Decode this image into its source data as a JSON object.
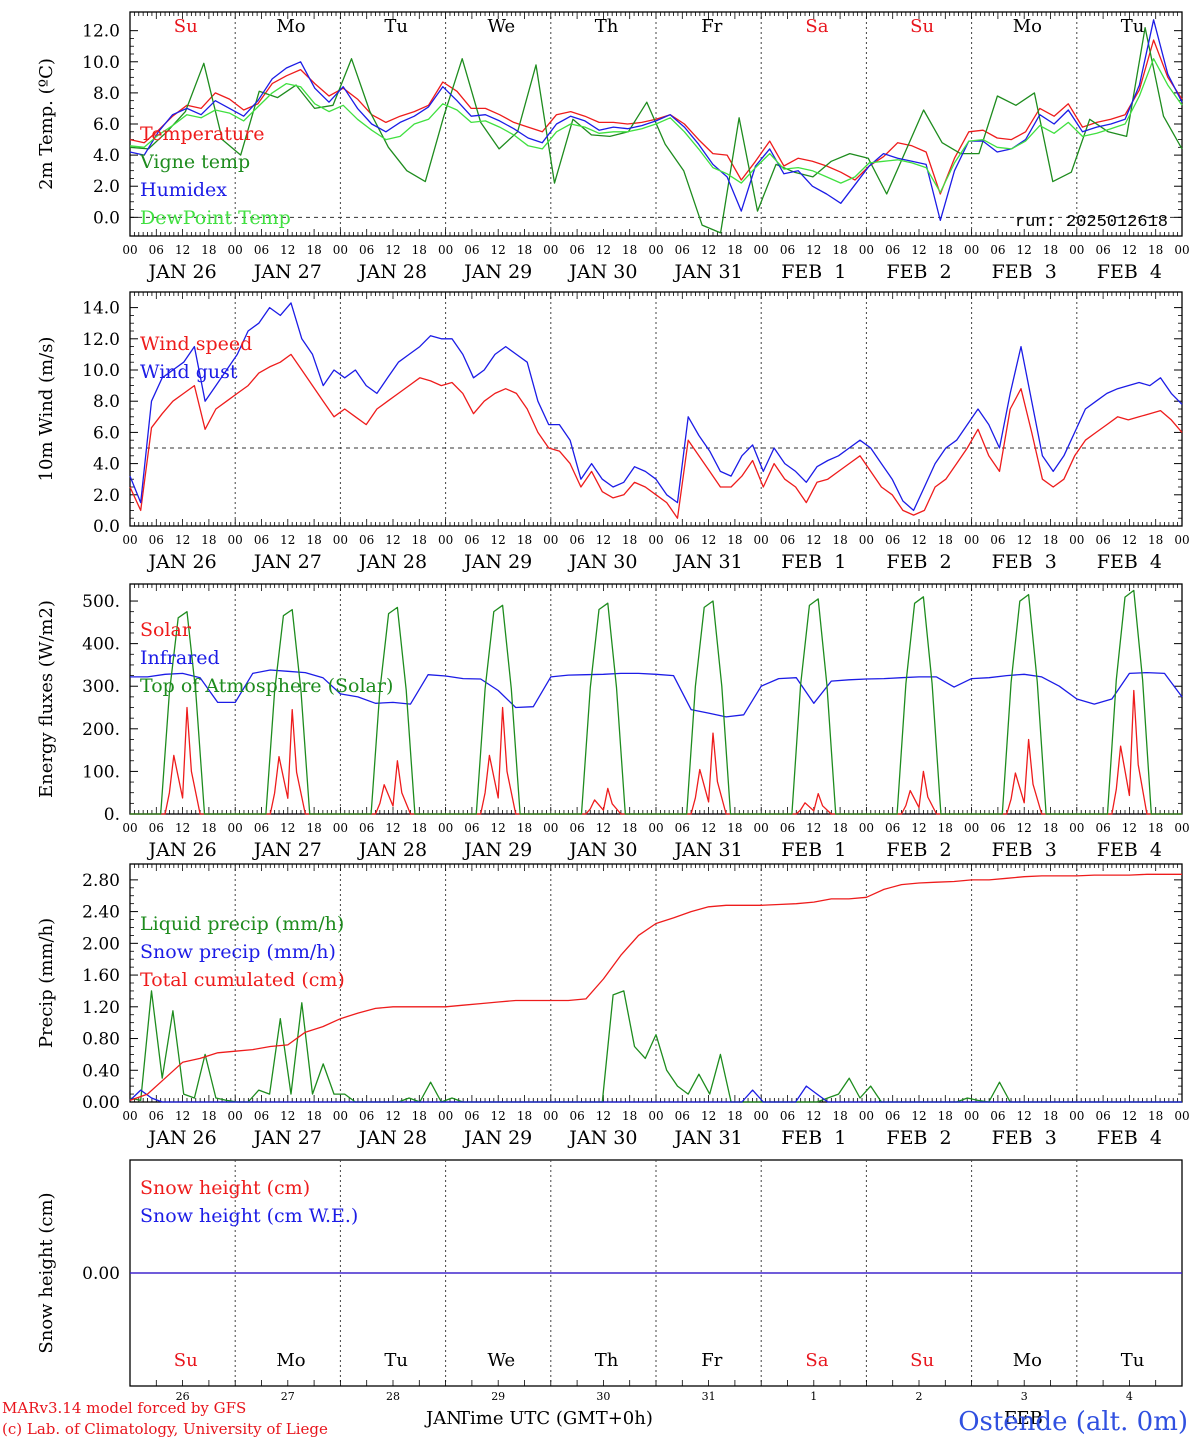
{
  "page": {
    "footer_model": "MARv3.14 model forced by GFS",
    "footer_lab": "(c) Lab. of Climatology, University of Liege",
    "station": "Ostende (alt. 0m)",
    "xlabel": "Time UTC (GMT+0h)",
    "month_start": "JAN",
    "month_end": "FEB"
  },
  "time_axis": {
    "hour_ticks": [
      "00",
      "06",
      "12",
      "18"
    ],
    "date_labels": [
      "JAN 26",
      "JAN 27",
      "JAN 28",
      "JAN 29",
      "JAN 30",
      "JAN 31",
      "FEB  1",
      "FEB  2",
      "FEB  3",
      "FEB  4"
    ],
    "weekdays": [
      "Su",
      "Mo",
      "Tu",
      "We",
      "Th",
      "Fr",
      "Sa",
      "Su",
      "Mo",
      "Tu"
    ],
    "weekday_colors": [
      "#e8141c",
      "#000000",
      "#000000",
      "#000000",
      "#000000",
      "#000000",
      "#e8141c",
      "#e8141c",
      "#000000",
      "#000000"
    ],
    "day_numbers": [
      "26",
      "27",
      "28",
      "29",
      "30",
      "31",
      "1",
      "2",
      "3",
      "4"
    ],
    "days": 10
  },
  "colors": {
    "red": "#ee1c1c",
    "green": "#1e8c1e",
    "blue": "#1c1ce6",
    "lightgreen": "#40e040",
    "station_blue": "#3050e0"
  },
  "chart_data": [
    {
      "id": "temp",
      "type": "line",
      "ylabel": "2m Temp. (ºC)",
      "ylim": [
        -1.2,
        13.2
      ],
      "yticks": [
        0,
        2,
        4,
        6,
        8,
        10,
        12
      ],
      "ytick_format": "1",
      "ref_line": 0,
      "annotation": "run: 2025012618",
      "series": [
        {
          "name": "Temperature",
          "color": "#ee1c1c",
          "values": [
            5.0,
            4.8,
            5.6,
            6.5,
            7.2,
            7.0,
            8.0,
            7.6,
            6.9,
            7.3,
            8.6,
            9.1,
            9.5,
            8.6,
            7.8,
            8.3,
            7.6,
            6.6,
            6.1,
            6.5,
            6.8,
            7.2,
            8.7,
            8.1,
            7.0,
            7.0,
            6.6,
            6.1,
            5.8,
            5.5,
            6.6,
            6.8,
            6.5,
            6.1,
            6.1,
            6.0,
            6.1,
            6.3,
            6.6,
            6.0,
            5.0,
            4.1,
            4.0,
            2.4,
            3.6,
            4.9,
            3.3,
            3.8,
            3.6,
            3.3,
            2.9,
            2.4,
            3.3,
            3.9,
            4.8,
            4.6,
            4.2,
            1.5,
            3.8,
            5.5,
            5.6,
            5.1,
            5.0,
            5.5,
            7.0,
            6.5,
            7.3,
            5.8,
            6.1,
            6.3,
            6.6,
            8.2,
            11.4,
            9.0,
            7.6
          ]
        },
        {
          "name": "Vigne temp",
          "color": "#1e8c1e",
          "values": [
            4.5,
            4.4,
            5.5,
            6.8,
            9.9,
            5.0,
            4.0,
            8.1,
            7.7,
            8.5,
            7.0,
            7.2,
            10.2,
            6.8,
            4.5,
            3.0,
            2.3,
            6.5,
            10.2,
            6.1,
            4.4,
            5.5,
            9.8,
            2.2,
            6.3,
            5.3,
            5.2,
            5.5,
            7.4,
            4.7,
            3.0,
            -0.5,
            -1.0,
            6.4,
            0.4,
            3.4,
            2.9,
            2.6,
            3.6,
            4.1,
            3.8,
            1.5,
            4.2,
            6.9,
            4.8,
            4.1,
            4.1,
            7.8,
            7.2,
            8.0,
            2.3,
            2.9,
            6.3,
            5.5,
            5.2,
            12.2,
            6.5,
            4.4
          ]
        },
        {
          "name": "Humidex",
          "color": "#1c1ce6",
          "values": [
            4.2,
            4.0,
            5.5,
            6.6,
            7.0,
            6.6,
            7.5,
            7.0,
            6.5,
            7.5,
            8.9,
            9.6,
            10.0,
            8.3,
            7.4,
            8.4,
            7.0,
            6.0,
            5.5,
            6.1,
            6.5,
            7.1,
            8.4,
            7.5,
            6.5,
            6.6,
            6.2,
            5.7,
            5.1,
            4.8,
            6.0,
            6.5,
            6.2,
            5.6,
            5.8,
            5.7,
            5.9,
            6.2,
            6.6,
            5.8,
            4.7,
            3.4,
            2.6,
            0.4,
            3.3,
            4.4,
            2.8,
            3.0,
            2.0,
            1.5,
            0.9,
            2.1,
            3.3,
            4.1,
            3.8,
            3.6,
            3.4,
            -0.2,
            3.0,
            4.9,
            4.9,
            4.2,
            4.4,
            5.0,
            6.6,
            6.0,
            6.9,
            5.5,
            5.8,
            6.0,
            6.3,
            8.5,
            12.7,
            9.2,
            7.4
          ]
        },
        {
          "name": "DewPoint Temp",
          "color": "#40e040",
          "values": [
            4.6,
            4.5,
            5.3,
            5.9,
            6.6,
            6.4,
            6.9,
            6.7,
            6.2,
            7.1,
            8.0,
            8.6,
            8.4,
            7.3,
            6.8,
            7.2,
            6.3,
            5.6,
            5.0,
            5.2,
            6.0,
            6.3,
            7.3,
            6.9,
            6.1,
            6.2,
            5.8,
            5.3,
            4.6,
            4.4,
            5.5,
            6.0,
            5.8,
            5.4,
            5.5,
            5.5,
            5.7,
            6.0,
            6.4,
            5.5,
            4.4,
            3.2,
            2.8,
            2.2,
            3.2,
            4.1,
            3.1,
            3.2,
            3.0,
            2.6,
            2.2,
            2.6,
            3.5,
            3.6,
            3.7,
            3.5,
            3.2,
            1.6,
            3.5,
            4.9,
            5.0,
            4.5,
            4.4,
            4.9,
            5.9,
            5.4,
            6.1,
            5.2,
            5.4,
            5.7,
            6.0,
            7.8,
            10.2,
            8.5,
            7.2
          ]
        }
      ]
    },
    {
      "id": "wind",
      "type": "line",
      "ylabel": "10m Wind (m/s)",
      "ylim": [
        0,
        15
      ],
      "yticks": [
        0,
        2,
        4,
        6,
        8,
        10,
        12,
        14
      ],
      "ytick_format": "1",
      "ref_line": 5,
      "series": [
        {
          "name": "Wind speed",
          "color": "#ee1c1c",
          "values": [
            2.5,
            1.0,
            6.3,
            7.2,
            8.0,
            8.5,
            9.0,
            6.2,
            7.5,
            8.0,
            8.5,
            9.0,
            9.8,
            10.2,
            10.5,
            11.0,
            10.0,
            9.0,
            8.0,
            7.0,
            7.5,
            7.0,
            6.5,
            7.5,
            8.0,
            8.5,
            9.0,
            9.5,
            9.3,
            9.0,
            9.2,
            8.5,
            7.2,
            8.0,
            8.5,
            8.8,
            8.5,
            7.5,
            6.0,
            5.0,
            4.8,
            4.0,
            2.5,
            3.5,
            2.2,
            1.8,
            2.0,
            2.8,
            2.5,
            2.0,
            1.5,
            0.5,
            5.5,
            4.5,
            3.5,
            2.5,
            2.5,
            3.2,
            4.2,
            2.5,
            4.0,
            3.0,
            2.5,
            1.5,
            2.8,
            3.0,
            3.5,
            4.0,
            4.5,
            3.5,
            2.5,
            2.0,
            1.0,
            0.7,
            1.0,
            2.5,
            3.0,
            4.0,
            5.0,
            6.2,
            4.5,
            3.5,
            7.5,
            8.8,
            6.0,
            3.0,
            2.5,
            3.0,
            4.5,
            5.5,
            6.0,
            6.5,
            7.0,
            6.8,
            7.0,
            7.2,
            7.4,
            6.8,
            6.0
          ]
        },
        {
          "name": "Wind gust",
          "color": "#1c1ce6",
          "values": [
            3.2,
            1.5,
            8.0,
            9.5,
            10.0,
            10.5,
            11.5,
            8.0,
            9.0,
            10.0,
            11.0,
            12.5,
            13.0,
            14.0,
            13.5,
            14.3,
            12.0,
            11.0,
            9.0,
            10.0,
            9.5,
            10.0,
            9.0,
            8.5,
            9.5,
            10.5,
            11.0,
            11.5,
            12.2,
            12.0,
            12.0,
            11.0,
            9.5,
            10.0,
            11.0,
            11.5,
            11.0,
            10.5,
            8.0,
            6.5,
            6.5,
            5.5,
            3.0,
            4.0,
            3.0,
            2.5,
            2.8,
            3.8,
            3.5,
            3.0,
            2.0,
            1.5,
            7.0,
            5.8,
            4.8,
            3.5,
            3.2,
            4.5,
            5.2,
            3.5,
            5.0,
            4.0,
            3.5,
            2.8,
            3.8,
            4.2,
            4.5,
            5.0,
            5.5,
            5.0,
            4.0,
            3.0,
            1.6,
            1.0,
            2.5,
            4.0,
            5.0,
            5.5,
            6.5,
            7.5,
            6.5,
            5.0,
            8.5,
            11.5,
            8.0,
            4.5,
            3.5,
            4.5,
            6.0,
            7.5,
            8.0,
            8.5,
            8.8,
            9.0,
            9.2,
            9.0,
            9.5,
            8.5,
            7.8
          ]
        }
      ]
    },
    {
      "id": "energy",
      "type": "line",
      "ylabel": "Energy fluxes (W/m2)",
      "ylim": [
        0,
        540
      ],
      "yticks": [
        0,
        100,
        200,
        300,
        400,
        500
      ],
      "ytick_format": "0",
      "series": [
        {
          "name": "Solar",
          "color": "#ee1c1c",
          "values_mode": "daily",
          "peaks": [
            250,
            245,
            125,
            250,
            60,
            190,
            48,
            100,
            175,
            290
          ]
        },
        {
          "name": "Infrared",
          "color": "#1c1ce6",
          "values": [
            322,
            322,
            328,
            330,
            320,
            262,
            262,
            330,
            338,
            335,
            332,
            320,
            282,
            275,
            260,
            262,
            258,
            327,
            324,
            318,
            317,
            290,
            250,
            252,
            322,
            326,
            327,
            328,
            330,
            330,
            328,
            325,
            245,
            237,
            228,
            233,
            300,
            318,
            320,
            260,
            312,
            315,
            317,
            318,
            320,
            322,
            322,
            298,
            318,
            320,
            325,
            328,
            322,
            300,
            270,
            258,
            270,
            330,
            332,
            330,
            275
          ]
        },
        {
          "name": "Top of Atmosphere (Solar)",
          "color": "#1e8c1e",
          "values_mode": "daily",
          "peaks": [
            475,
            480,
            485,
            490,
            495,
            500,
            505,
            510,
            515,
            525
          ]
        }
      ]
    },
    {
      "id": "precip",
      "type": "line",
      "ylabel": "Precip (mm/h)",
      "ylim": [
        0,
        3.0
      ],
      "yticks": [
        0,
        0.4,
        0.8,
        1.2,
        1.6,
        2.0,
        2.4,
        2.8
      ],
      "ytick_format": "2",
      "series": [
        {
          "name": "Liquid precip (mm/h)",
          "color": "#1e8c1e",
          "values": [
            0.05,
            0.02,
            1.4,
            0.3,
            1.15,
            0.1,
            0.05,
            0.6,
            0.05,
            0.02,
            0,
            0,
            0.15,
            0.1,
            1.05,
            0.1,
            1.25,
            0.1,
            0.48,
            0.1,
            0.1,
            0,
            0,
            0,
            0,
            0,
            0.05,
            0,
            0.25,
            0,
            0.05,
            0,
            0,
            0,
            0,
            0,
            0,
            0,
            0,
            0,
            0,
            0,
            0,
            0,
            0,
            1.35,
            1.4,
            0.7,
            0.55,
            0.85,
            0.4,
            0.2,
            0.1,
            0.35,
            0.1,
            0.6,
            0,
            0,
            0,
            0,
            0,
            0,
            0,
            0,
            0,
            0.05,
            0.1,
            0.3,
            0.05,
            0.2,
            0,
            0,
            0,
            0,
            0,
            0,
            0,
            0,
            0.05,
            0.02,
            0,
            0.25,
            0,
            0,
            0,
            0,
            0,
            0,
            0,
            0,
            0,
            0,
            0,
            0,
            0,
            0,
            0,
            0,
            0
          ]
        },
        {
          "name": "Snow precip (mm/h)",
          "color": "#1c1ce6",
          "values": [
            0.02,
            0.15,
            0.05,
            0,
            0,
            0,
            0,
            0,
            0,
            0,
            0,
            0,
            0,
            0,
            0,
            0,
            0,
            0,
            0,
            0,
            0,
            0,
            0,
            0,
            0,
            0,
            0,
            0,
            0,
            0,
            0,
            0,
            0,
            0,
            0,
            0,
            0,
            0,
            0,
            0,
            0,
            0,
            0,
            0,
            0,
            0,
            0,
            0,
            0,
            0,
            0,
            0,
            0,
            0,
            0,
            0,
            0,
            0,
            0.15,
            0,
            0,
            0,
            0,
            0.2,
            0.1,
            0,
            0,
            0,
            0,
            0,
            0,
            0,
            0,
            0,
            0,
            0,
            0,
            0,
            0,
            0,
            0,
            0,
            0,
            0,
            0,
            0,
            0,
            0,
            0,
            0,
            0,
            0,
            0,
            0,
            0,
            0,
            0,
            0,
            0
          ]
        },
        {
          "name": "Total cumulated (cm)",
          "color": "#ee1c1c",
          "values": [
            0.02,
            0.1,
            0.3,
            0.5,
            0.55,
            0.62,
            0.64,
            0.66,
            0.7,
            0.72,
            0.88,
            0.95,
            1.05,
            1.12,
            1.18,
            1.2,
            1.2,
            1.2,
            1.2,
            1.22,
            1.24,
            1.26,
            1.28,
            1.28,
            1.28,
            1.28,
            1.3,
            1.55,
            1.85,
            2.1,
            2.25,
            2.32,
            2.4,
            2.46,
            2.48,
            2.48,
            2.48,
            2.49,
            2.5,
            2.52,
            2.56,
            2.56,
            2.58,
            2.68,
            2.74,
            2.76,
            2.77,
            2.78,
            2.8,
            2.8,
            2.82,
            2.84,
            2.85,
            2.85,
            2.85,
            2.86,
            2.86,
            2.86,
            2.87,
            2.87,
            2.87
          ]
        }
      ]
    },
    {
      "id": "snow",
      "type": "line",
      "ylabel": "Snow height (cm)",
      "ylim": [
        -1,
        1
      ],
      "yticks": [
        0
      ],
      "ytick_format": "2",
      "series": [
        {
          "name": "Snow height (cm)",
          "color": "#ee1c1c",
          "values": [
            0,
            0
          ]
        },
        {
          "name": "Snow height (cm W.E.)",
          "color": "#1c1ce6",
          "values": [
            0,
            0
          ]
        }
      ]
    }
  ]
}
